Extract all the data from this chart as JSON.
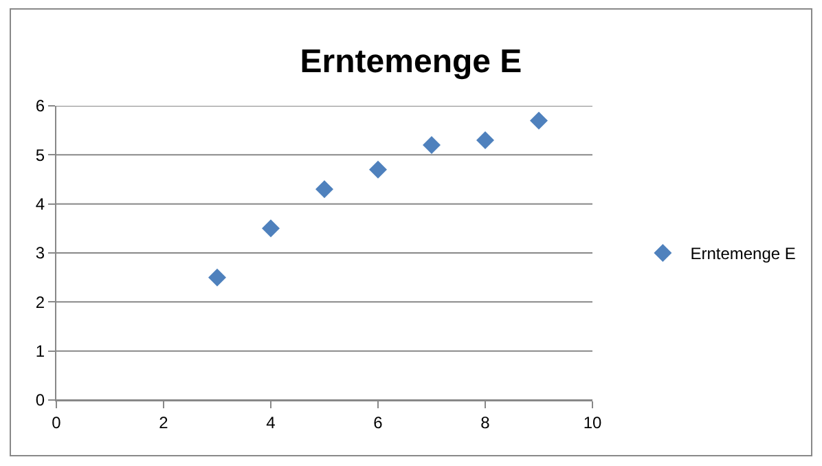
{
  "chart_data": {
    "type": "scatter",
    "title": "Erntemenge E",
    "x": [
      3,
      4,
      5,
      6,
      7,
      8,
      9
    ],
    "series": [
      {
        "name": "Erntemenge E",
        "color": "#4f81bd",
        "values": [
          2.5,
          3.5,
          4.3,
          4.7,
          5.2,
          5.3,
          5.7
        ]
      }
    ],
    "xlim": [
      0,
      10
    ],
    "xticks": [
      0,
      2,
      4,
      6,
      8,
      10
    ],
    "ylim": [
      0,
      6
    ],
    "yticks": [
      0,
      1,
      2,
      3,
      4,
      5,
      6
    ],
    "grid": "y",
    "legend": "right",
    "marker": "diamond"
  }
}
